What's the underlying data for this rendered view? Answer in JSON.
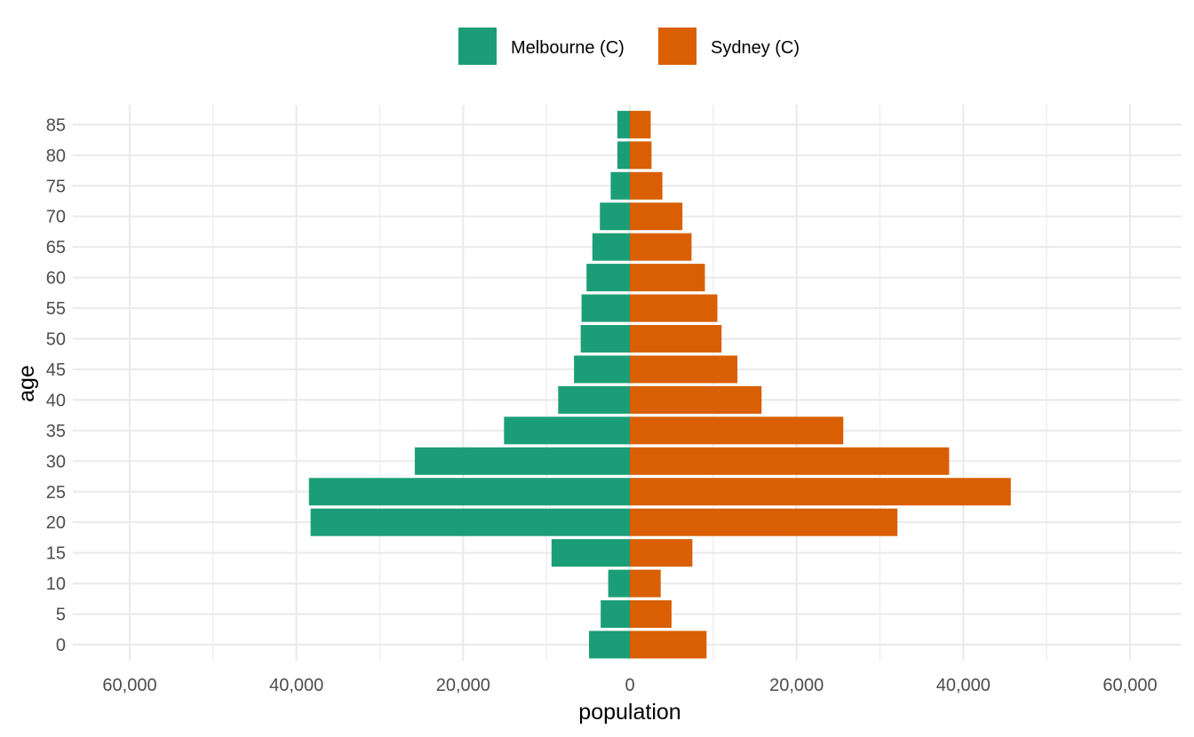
{
  "chart_data": {
    "type": "bar",
    "orientation": "horizontal",
    "layout": "population-pyramid",
    "xlabel": "population",
    "ylabel": "age",
    "xlim": [
      -65000,
      65000
    ],
    "x_ticks": [
      -60000,
      -50000,
      -40000,
      -30000,
      -20000,
      -10000,
      0,
      10000,
      20000,
      30000,
      40000,
      50000,
      60000
    ],
    "x_tick_labels": [
      "60,000",
      "",
      "40,000",
      "",
      "20,000",
      "",
      "0",
      "",
      "20,000",
      "",
      "40,000",
      "",
      "60,000"
    ],
    "categories": [
      "0",
      "5",
      "10",
      "15",
      "20",
      "25",
      "30",
      "35",
      "40",
      "45",
      "50",
      "55",
      "60",
      "65",
      "70",
      "75",
      "80",
      "85"
    ],
    "grid": true,
    "legend_position": "top",
    "series": [
      {
        "name": "Melbourne (C)",
        "color": "#1b9e77",
        "direction": "left",
        "values": [
          4900,
          3500,
          2600,
          9400,
          38300,
          38500,
          25800,
          15100,
          8600,
          6700,
          5900,
          5800,
          5200,
          4500,
          3600,
          2300,
          1500,
          1500
        ]
      },
      {
        "name": "Sydney (C)",
        "color": "#d95f02",
        "direction": "right",
        "values": [
          9200,
          5000,
          3700,
          7500,
          32100,
          45700,
          38300,
          25600,
          15800,
          12900,
          11000,
          10500,
          9000,
          7400,
          6300,
          3900,
          2600,
          2500
        ]
      }
    ]
  }
}
